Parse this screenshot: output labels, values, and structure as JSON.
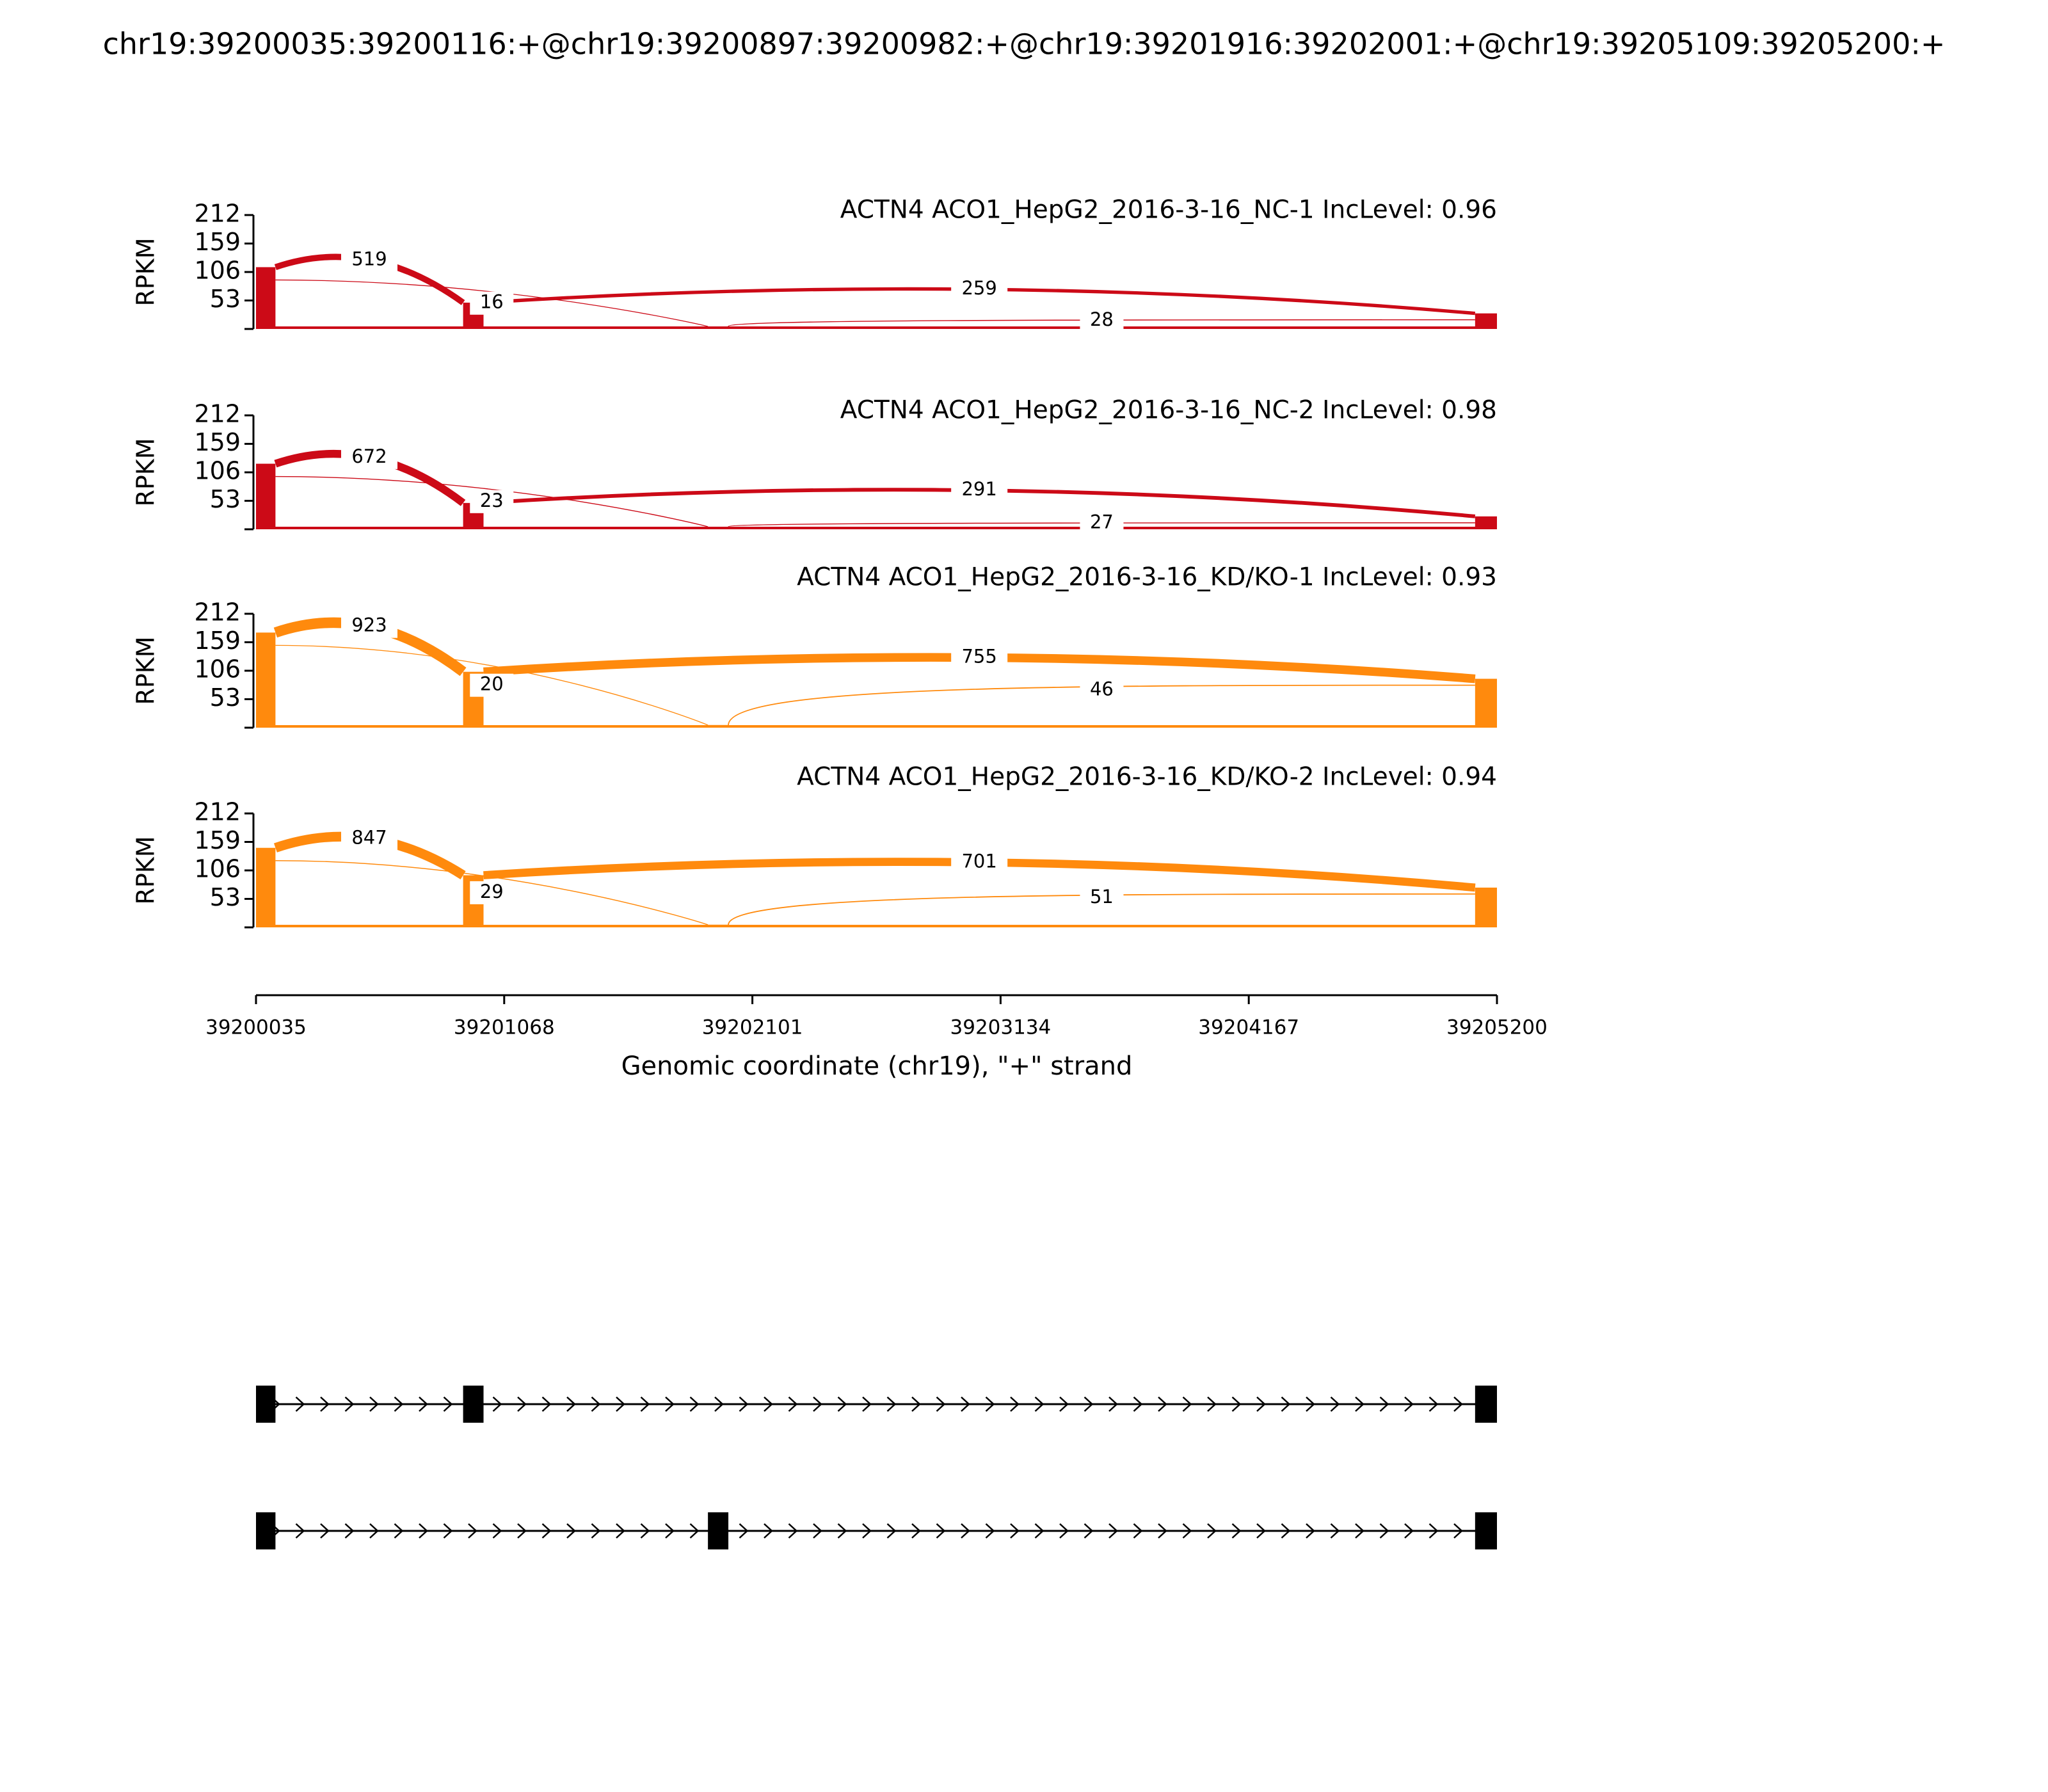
{
  "chart_data": {
    "type": "sashimi",
    "title": "chr19:39200035:39200116:+@chr19:39200897:39200982:+@chr19:39201916:39202001:+@chr19:39205109:39205200:+",
    "exons": [
      [
        39200035,
        39200116
      ],
      [
        39200897,
        39200982
      ],
      [
        39201916,
        39202001
      ],
      [
        39205109,
        39205200
      ]
    ],
    "xlim": [
      39200035,
      39205200
    ],
    "xticks": [
      39200035,
      39201068,
      39202101,
      39203134,
      39204167,
      39205200
    ],
    "xlabel": "Genomic coordinate (chr19), \"+\" strand",
    "ylabel": "RPKM",
    "ylim": [
      0,
      212
    ],
    "yticks": [
      53,
      106,
      159,
      212
    ],
    "panels": [
      {
        "name": "ACTN4 ACO1_HepG2_2016-3-16_NC-1 IncLevel: 0.96",
        "color": "#cc0a17",
        "coverage": [
          115,
          49,
          3,
          29
        ],
        "junctions": [
          {
            "from": 0,
            "to": 1,
            "count": 519
          },
          {
            "from": 0,
            "to": 2,
            "count": 16
          },
          {
            "from": 1,
            "to": 3,
            "count": 259
          },
          {
            "from": 2,
            "to": 3,
            "count": 28
          }
        ]
      },
      {
        "name": "ACTN4 ACO1_HepG2_2016-3-16_NC-2 IncLevel: 0.98",
        "color": "#cc0a17",
        "coverage": [
          122,
          49,
          3,
          24
        ],
        "junctions": [
          {
            "from": 0,
            "to": 1,
            "count": 672
          },
          {
            "from": 0,
            "to": 2,
            "count": 23
          },
          {
            "from": 1,
            "to": 3,
            "count": 291
          },
          {
            "from": 2,
            "to": 3,
            "count": 27
          }
        ]
      },
      {
        "name": "ACTN4 ACO1_HepG2_2016-3-16_KD/KO-1 IncLevel: 0.93",
        "color": "#ff8a0d",
        "coverage": [
          177,
          104,
          5,
          91
        ],
        "junctions": [
          {
            "from": 0,
            "to": 1,
            "count": 923
          },
          {
            "from": 0,
            "to": 2,
            "count": 20
          },
          {
            "from": 1,
            "to": 3,
            "count": 755
          },
          {
            "from": 2,
            "to": 3,
            "count": 46
          }
        ]
      },
      {
        "name": "ACTN4 ACO1_HepG2_2016-3-16_KD/KO-2 IncLevel: 0.94",
        "color": "#ff8a0d",
        "coverage": [
          148,
          97,
          5,
          74
        ],
        "junctions": [
          {
            "from": 0,
            "to": 1,
            "count": 847
          },
          {
            "from": 0,
            "to": 2,
            "count": 29
          },
          {
            "from": 1,
            "to": 3,
            "count": 701
          },
          {
            "from": 2,
            "to": 3,
            "count": 51
          }
        ]
      }
    ],
    "transcripts": [
      [
        0,
        1,
        3
      ],
      [
        0,
        2,
        3
      ]
    ]
  }
}
